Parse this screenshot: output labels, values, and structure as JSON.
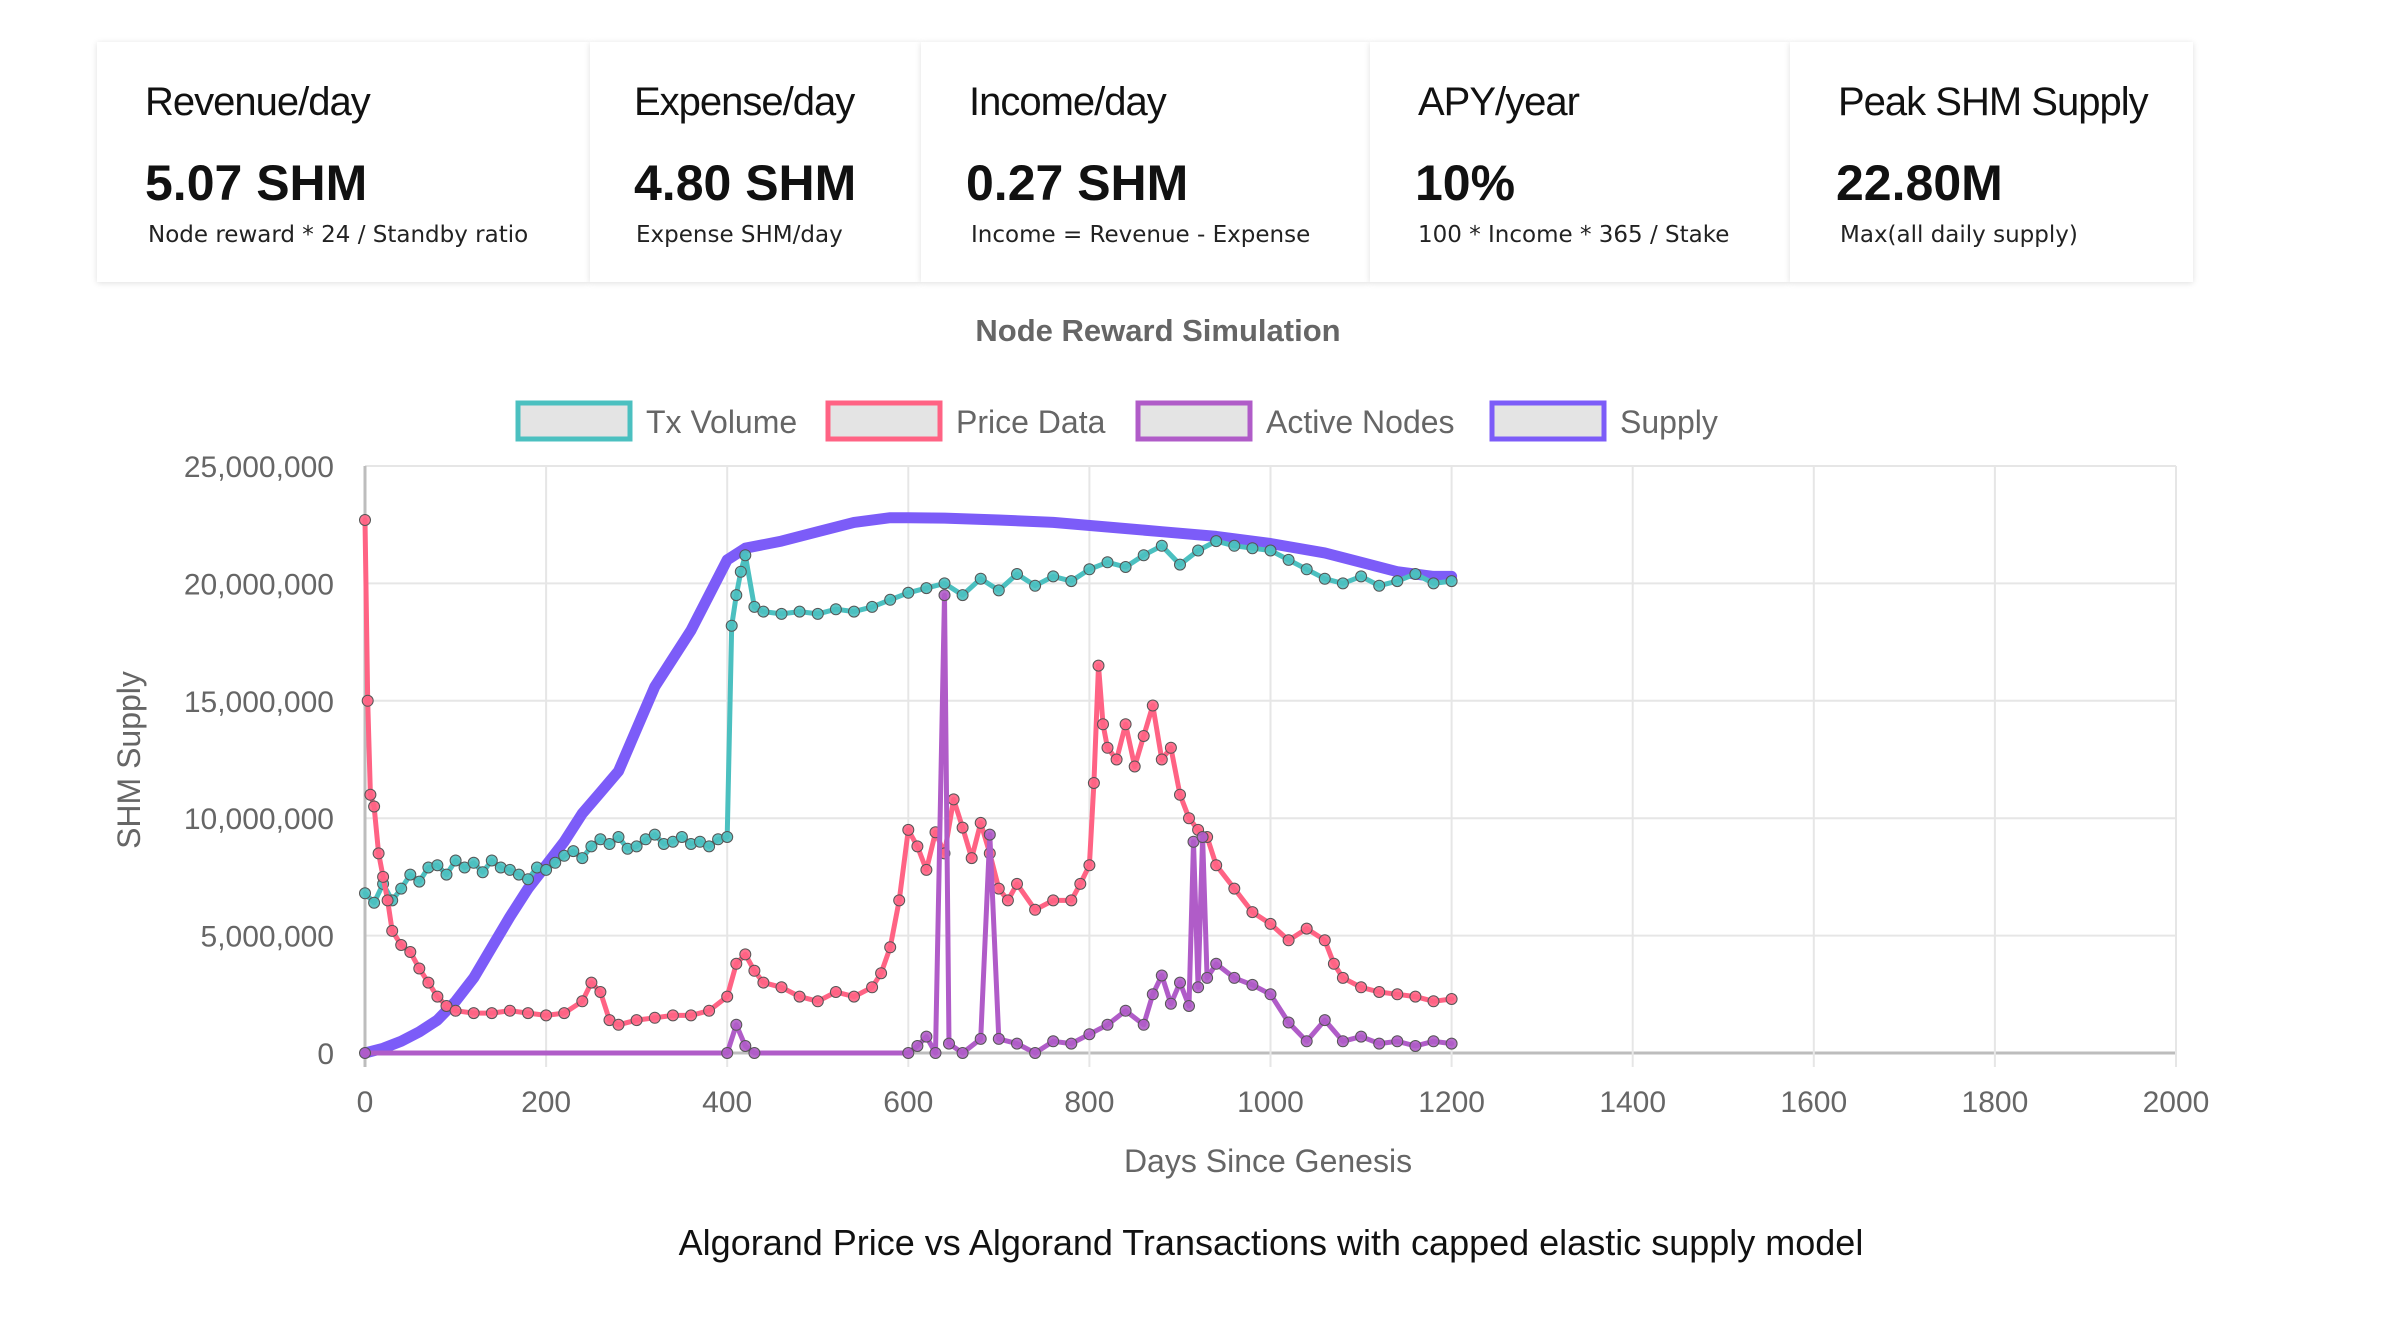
{
  "cards": [
    {
      "title": "Revenue/day",
      "value": "5.07 SHM",
      "sub": "Node reward * 24 / Standby ratio"
    },
    {
      "title": "Expense/day",
      "value": "4.80 SHM",
      "sub": "Expense SHM/day"
    },
    {
      "title": "Income/day",
      "value": "0.27 SHM",
      "sub": "Income = Revenue - Expense"
    },
    {
      "title": "APY/year",
      "value": "10%",
      "sub": "100 * Income * 365 / Stake"
    },
    {
      "title": "Peak SHM Supply",
      "value": "22.80M",
      "sub": "Max(all daily supply)"
    }
  ],
  "caption": "Algorand Price vs Algorand Transactions with capped elastic supply model",
  "chart_data": {
    "type": "line",
    "title": "Node Reward Simulation",
    "xlabel": "Days Since Genesis",
    "ylabel": "SHM Supply",
    "xlim": [
      0,
      2000
    ],
    "ylim": [
      0,
      25000000
    ],
    "xticks": [
      "0",
      "200",
      "400",
      "600",
      "800",
      "1000",
      "1200",
      "1400",
      "1600",
      "1800",
      "2000"
    ],
    "yticks": [
      "0",
      "5,000,000",
      "10,000,000",
      "15,000,000",
      "20,000,000",
      "25,000,000"
    ],
    "grid": true,
    "legend_position": "top",
    "series": [
      {
        "name": "Tx Volume",
        "color": "#4bc0c0",
        "points": [
          [
            0,
            6800000
          ],
          [
            10,
            6400000
          ],
          [
            20,
            7200000
          ],
          [
            30,
            6500000
          ],
          [
            40,
            7000000
          ],
          [
            50,
            7600000
          ],
          [
            60,
            7300000
          ],
          [
            70,
            7900000
          ],
          [
            80,
            8000000
          ],
          [
            90,
            7600000
          ],
          [
            100,
            8200000
          ],
          [
            110,
            7900000
          ],
          [
            120,
            8100000
          ],
          [
            130,
            7700000
          ],
          [
            140,
            8200000
          ],
          [
            150,
            7900000
          ],
          [
            160,
            7800000
          ],
          [
            170,
            7600000
          ],
          [
            180,
            7400000
          ],
          [
            190,
            7900000
          ],
          [
            200,
            7800000
          ],
          [
            210,
            8100000
          ],
          [
            220,
            8400000
          ],
          [
            230,
            8600000
          ],
          [
            240,
            8300000
          ],
          [
            250,
            8800000
          ],
          [
            260,
            9100000
          ],
          [
            270,
            8900000
          ],
          [
            280,
            9200000
          ],
          [
            290,
            8700000
          ],
          [
            300,
            8800000
          ],
          [
            310,
            9100000
          ],
          [
            320,
            9300000
          ],
          [
            330,
            8900000
          ],
          [
            340,
            9000000
          ],
          [
            350,
            9200000
          ],
          [
            360,
            8900000
          ],
          [
            370,
            9000000
          ],
          [
            380,
            8800000
          ],
          [
            390,
            9100000
          ],
          [
            400,
            9200000
          ],
          [
            405,
            18200000
          ],
          [
            410,
            19500000
          ],
          [
            415,
            20500000
          ],
          [
            420,
            21200000
          ],
          [
            430,
            19000000
          ],
          [
            440,
            18800000
          ],
          [
            460,
            18700000
          ],
          [
            480,
            18800000
          ],
          [
            500,
            18700000
          ],
          [
            520,
            18900000
          ],
          [
            540,
            18800000
          ],
          [
            560,
            19000000
          ],
          [
            580,
            19300000
          ],
          [
            600,
            19600000
          ],
          [
            620,
            19800000
          ],
          [
            640,
            20000000
          ],
          [
            660,
            19500000
          ],
          [
            680,
            20200000
          ],
          [
            700,
            19700000
          ],
          [
            720,
            20400000
          ],
          [
            740,
            19900000
          ],
          [
            760,
            20300000
          ],
          [
            780,
            20100000
          ],
          [
            800,
            20600000
          ],
          [
            820,
            20900000
          ],
          [
            840,
            20700000
          ],
          [
            860,
            21200000
          ],
          [
            880,
            21600000
          ],
          [
            900,
            20800000
          ],
          [
            920,
            21400000
          ],
          [
            940,
            21800000
          ],
          [
            960,
            21600000
          ],
          [
            980,
            21500000
          ],
          [
            1000,
            21400000
          ],
          [
            1020,
            21000000
          ],
          [
            1040,
            20600000
          ],
          [
            1060,
            20200000
          ],
          [
            1080,
            20000000
          ],
          [
            1100,
            20300000
          ],
          [
            1120,
            19900000
          ],
          [
            1140,
            20100000
          ],
          [
            1160,
            20400000
          ],
          [
            1180,
            20000000
          ],
          [
            1200,
            20100000
          ]
        ]
      },
      {
        "name": "Price Data",
        "color": "#ff6384",
        "points": [
          [
            0,
            22700000
          ],
          [
            3,
            15000000
          ],
          [
            6,
            11000000
          ],
          [
            10,
            10500000
          ],
          [
            15,
            8500000
          ],
          [
            20,
            7500000
          ],
          [
            25,
            6500000
          ],
          [
            30,
            5200000
          ],
          [
            40,
            4600000
          ],
          [
            50,
            4300000
          ],
          [
            60,
            3600000
          ],
          [
            70,
            3000000
          ],
          [
            80,
            2400000
          ],
          [
            90,
            2000000
          ],
          [
            100,
            1800000
          ],
          [
            120,
            1700000
          ],
          [
            140,
            1700000
          ],
          [
            160,
            1800000
          ],
          [
            180,
            1700000
          ],
          [
            200,
            1600000
          ],
          [
            220,
            1700000
          ],
          [
            240,
            2200000
          ],
          [
            250,
            3000000
          ],
          [
            260,
            2600000
          ],
          [
            270,
            1400000
          ],
          [
            280,
            1200000
          ],
          [
            300,
            1400000
          ],
          [
            320,
            1500000
          ],
          [
            340,
            1600000
          ],
          [
            360,
            1600000
          ],
          [
            380,
            1800000
          ],
          [
            400,
            2400000
          ],
          [
            410,
            3800000
          ],
          [
            420,
            4200000
          ],
          [
            430,
            3500000
          ],
          [
            440,
            3000000
          ],
          [
            460,
            2800000
          ],
          [
            480,
            2400000
          ],
          [
            500,
            2200000
          ],
          [
            520,
            2600000
          ],
          [
            540,
            2400000
          ],
          [
            560,
            2800000
          ],
          [
            570,
            3400000
          ],
          [
            580,
            4500000
          ],
          [
            590,
            6500000
          ],
          [
            600,
            9500000
          ],
          [
            610,
            8800000
          ],
          [
            620,
            7800000
          ],
          [
            630,
            9400000
          ],
          [
            640,
            8500000
          ],
          [
            650,
            10800000
          ],
          [
            660,
            9600000
          ],
          [
            670,
            8300000
          ],
          [
            680,
            9800000
          ],
          [
            690,
            8500000
          ],
          [
            700,
            7000000
          ],
          [
            710,
            6500000
          ],
          [
            720,
            7200000
          ],
          [
            740,
            6100000
          ],
          [
            760,
            6500000
          ],
          [
            780,
            6500000
          ],
          [
            790,
            7200000
          ],
          [
            800,
            8000000
          ],
          [
            805,
            11500000
          ],
          [
            810,
            16500000
          ],
          [
            815,
            14000000
          ],
          [
            820,
            13000000
          ],
          [
            830,
            12500000
          ],
          [
            840,
            14000000
          ],
          [
            850,
            12200000
          ],
          [
            860,
            13500000
          ],
          [
            870,
            14800000
          ],
          [
            880,
            12500000
          ],
          [
            890,
            13000000
          ],
          [
            900,
            11000000
          ],
          [
            910,
            10000000
          ],
          [
            920,
            9500000
          ],
          [
            930,
            9200000
          ],
          [
            940,
            8000000
          ],
          [
            960,
            7000000
          ],
          [
            980,
            6000000
          ],
          [
            1000,
            5500000
          ],
          [
            1020,
            4800000
          ],
          [
            1040,
            5300000
          ],
          [
            1060,
            4800000
          ],
          [
            1070,
            3800000
          ],
          [
            1080,
            3200000
          ],
          [
            1100,
            2800000
          ],
          [
            1120,
            2600000
          ],
          [
            1140,
            2500000
          ],
          [
            1160,
            2400000
          ],
          [
            1180,
            2200000
          ],
          [
            1200,
            2300000
          ]
        ]
      },
      {
        "name": "Active Nodes",
        "color": "#b05cc8",
        "points": [
          [
            0,
            0
          ],
          [
            400,
            0
          ],
          [
            410,
            1200000
          ],
          [
            420,
            300000
          ],
          [
            430,
            0
          ],
          [
            600,
            0
          ],
          [
            610,
            300000
          ],
          [
            620,
            700000
          ],
          [
            630,
            0
          ],
          [
            640,
            19500000
          ],
          [
            645,
            400000
          ],
          [
            660,
            0
          ],
          [
            680,
            600000
          ],
          [
            690,
            9300000
          ],
          [
            700,
            600000
          ],
          [
            720,
            400000
          ],
          [
            740,
            0
          ],
          [
            760,
            500000
          ],
          [
            780,
            400000
          ],
          [
            800,
            800000
          ],
          [
            820,
            1200000
          ],
          [
            840,
            1800000
          ],
          [
            860,
            1200000
          ],
          [
            870,
            2500000
          ],
          [
            880,
            3300000
          ],
          [
            890,
            2100000
          ],
          [
            900,
            3000000
          ],
          [
            910,
            2000000
          ],
          [
            915,
            9000000
          ],
          [
            920,
            2800000
          ],
          [
            925,
            9200000
          ],
          [
            930,
            3200000
          ],
          [
            940,
            3800000
          ],
          [
            960,
            3200000
          ],
          [
            980,
            2900000
          ],
          [
            1000,
            2500000
          ],
          [
            1020,
            1300000
          ],
          [
            1040,
            500000
          ],
          [
            1060,
            1400000
          ],
          [
            1080,
            500000
          ],
          [
            1100,
            700000
          ],
          [
            1120,
            400000
          ],
          [
            1140,
            500000
          ],
          [
            1160,
            300000
          ],
          [
            1180,
            500000
          ],
          [
            1200,
            400000
          ]
        ]
      },
      {
        "name": "Supply",
        "color": "#7c5cf8",
        "points": [
          [
            0,
            0
          ],
          [
            20,
            200000
          ],
          [
            40,
            500000
          ],
          [
            60,
            900000
          ],
          [
            80,
            1400000
          ],
          [
            100,
            2200000
          ],
          [
            120,
            3200000
          ],
          [
            140,
            4500000
          ],
          [
            160,
            5800000
          ],
          [
            180,
            7000000
          ],
          [
            200,
            8000000
          ],
          [
            220,
            9000000
          ],
          [
            240,
            10200000
          ],
          [
            260,
            11100000
          ],
          [
            280,
            12000000
          ],
          [
            300,
            13800000
          ],
          [
            320,
            15600000
          ],
          [
            340,
            16800000
          ],
          [
            360,
            18000000
          ],
          [
            380,
            19500000
          ],
          [
            400,
            21000000
          ],
          [
            420,
            21500000
          ],
          [
            460,
            21800000
          ],
          [
            500,
            22200000
          ],
          [
            540,
            22600000
          ],
          [
            580,
            22800000
          ],
          [
            600,
            22800000
          ],
          [
            640,
            22780000
          ],
          [
            700,
            22700000
          ],
          [
            760,
            22600000
          ],
          [
            820,
            22400000
          ],
          [
            880,
            22200000
          ],
          [
            940,
            22000000
          ],
          [
            1000,
            21700000
          ],
          [
            1060,
            21300000
          ],
          [
            1100,
            20900000
          ],
          [
            1140,
            20500000
          ],
          [
            1180,
            20300000
          ],
          [
            1200,
            20300000
          ]
        ]
      }
    ]
  }
}
